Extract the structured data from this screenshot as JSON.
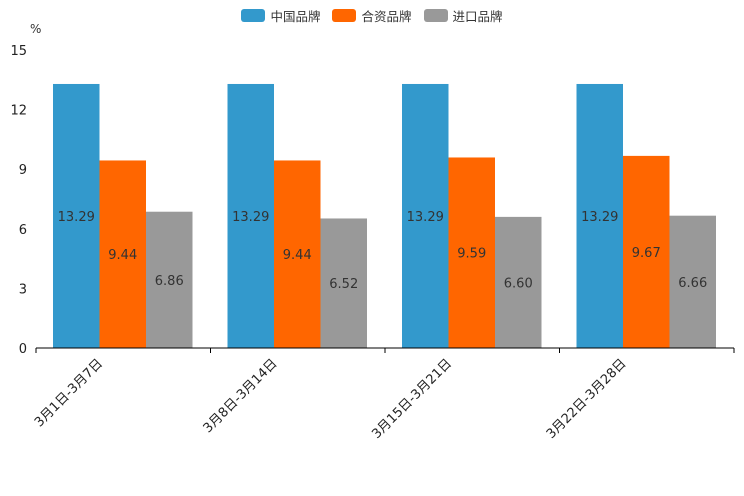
{
  "chart_data": {
    "type": "bar",
    "unit": "%",
    "categories": [
      "3月1日-3月7日",
      "3月8日-3月14日",
      "3月15日-3月21日",
      "3月22日-3月28日"
    ],
    "series": [
      {
        "name": "中国品牌",
        "color": "#3399cc",
        "values": [
          13.29,
          13.29,
          13.29,
          13.29
        ],
        "labels": [
          "13.29",
          "13.29",
          "13.29",
          "13.29"
        ]
      },
      {
        "name": "合资品牌",
        "color": "#ff6600",
        "values": [
          9.44,
          9.44,
          9.59,
          9.67
        ],
        "labels": [
          "9.44",
          "9.44",
          "9.59",
          "9.67"
        ]
      },
      {
        "name": "进口品牌",
        "color": "#999999",
        "values": [
          6.86,
          6.52,
          6.6,
          6.66
        ],
        "labels": [
          "6.86",
          "6.52",
          "6.60",
          "6.66"
        ]
      }
    ],
    "yticks": [
      "0",
      "3",
      "6",
      "9",
      "12",
      "15"
    ],
    "ylim": [
      0,
      15
    ],
    "legend_position": "top-center"
  }
}
